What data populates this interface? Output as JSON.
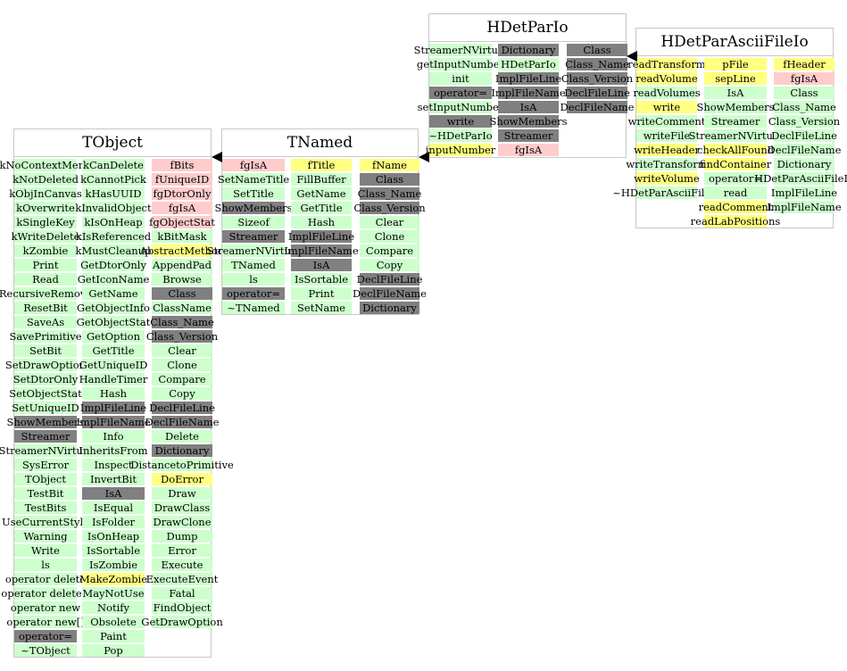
{
  "colors": {
    "green": "#ccffcc",
    "gray": "#808080",
    "pink": "#ffcccc",
    "yellow": "#ffff80",
    "border": "#c8c8c8",
    "arrow": "#000000"
  },
  "classes": [
    {
      "id": "tobject",
      "title": "TObject",
      "columns": [
        {
          "items": [
            [
              "kNoContextMenu",
              "green"
            ],
            [
              "kNotDeleted",
              "green"
            ],
            [
              "kObjInCanvas",
              "green"
            ],
            [
              "kOverwrite",
              "green"
            ],
            [
              "kSingleKey",
              "green"
            ],
            [
              "kWriteDelete",
              "green"
            ],
            [
              "kZombie",
              "green"
            ],
            [
              "Print",
              "green"
            ],
            [
              "Read",
              "green"
            ],
            [
              "RecursiveRemove",
              "green"
            ],
            [
              "ResetBit",
              "green"
            ],
            [
              "SaveAs",
              "green"
            ],
            [
              "SavePrimitive",
              "green"
            ],
            [
              "SetBit",
              "green"
            ],
            [
              "SetDrawOption",
              "green"
            ],
            [
              "SetDtorOnly",
              "green"
            ],
            [
              "SetObjectStat",
              "green"
            ],
            [
              "SetUniqueID",
              "green"
            ],
            [
              "ShowMembers",
              "gray"
            ],
            [
              "Streamer",
              "gray"
            ],
            [
              "StreamerNVirtual",
              "green"
            ],
            [
              "SysError",
              "green"
            ],
            [
              "TObject",
              "green"
            ],
            [
              "TestBit",
              "green"
            ],
            [
              "TestBits",
              "green"
            ],
            [
              "UseCurrentStyle",
              "green"
            ],
            [
              "Warning",
              "green"
            ],
            [
              "Write",
              "green"
            ],
            [
              "ls",
              "green"
            ],
            [
              "operator delete",
              "green"
            ],
            [
              "operator delete[]",
              "green"
            ],
            [
              "operator new",
              "green"
            ],
            [
              "operator new[]",
              "green"
            ],
            [
              "operator=",
              "gray"
            ],
            [
              "~TObject",
              "green"
            ]
          ]
        },
        {
          "items": [
            [
              "kCanDelete",
              "green"
            ],
            [
              "kCannotPick",
              "green"
            ],
            [
              "kHasUUID",
              "green"
            ],
            [
              "kInvalidObject",
              "green"
            ],
            [
              "kIsOnHeap",
              "green"
            ],
            [
              "kIsReferenced",
              "green"
            ],
            [
              "kMustCleanup",
              "green"
            ],
            [
              "GetDtorOnly",
              "green"
            ],
            [
              "GetIconName",
              "green"
            ],
            [
              "GetName",
              "green"
            ],
            [
              "GetObjectInfo",
              "green"
            ],
            [
              "GetObjectStat",
              "green"
            ],
            [
              "GetOption",
              "green"
            ],
            [
              "GetTitle",
              "green"
            ],
            [
              "GetUniqueID",
              "green"
            ],
            [
              "HandleTimer",
              "green"
            ],
            [
              "Hash",
              "green"
            ],
            [
              "ImplFileLine",
              "gray"
            ],
            [
              "ImplFileName",
              "gray"
            ],
            [
              "Info",
              "green"
            ],
            [
              "InheritsFrom",
              "green"
            ],
            [
              "Inspect",
              "green"
            ],
            [
              "InvertBit",
              "green"
            ],
            [
              "IsA",
              "gray"
            ],
            [
              "IsEqual",
              "green"
            ],
            [
              "IsFolder",
              "green"
            ],
            [
              "IsOnHeap",
              "green"
            ],
            [
              "IsSortable",
              "green"
            ],
            [
              "IsZombie",
              "green"
            ],
            [
              "MakeZombie",
              "yellow"
            ],
            [
              "MayNotUse",
              "green"
            ],
            [
              "Notify",
              "green"
            ],
            [
              "Obsolete",
              "green"
            ],
            [
              "Paint",
              "green"
            ],
            [
              "Pop",
              "green"
            ]
          ]
        },
        {
          "items": [
            [
              "fBits",
              "pink"
            ],
            [
              "fUniqueID",
              "pink"
            ],
            [
              "fgDtorOnly",
              "pink"
            ],
            [
              "fgIsA",
              "pink"
            ],
            [
              "fgObjectStat",
              "pink"
            ],
            [
              "kBitMask",
              "green"
            ],
            [
              "AbstractMethod",
              "yellow"
            ],
            [
              "AppendPad",
              "green"
            ],
            [
              "Browse",
              "green"
            ],
            [
              "Class",
              "gray"
            ],
            [
              "ClassName",
              "green"
            ],
            [
              "Class_Name",
              "gray"
            ],
            [
              "Class_Version",
              "gray"
            ],
            [
              "Clear",
              "green"
            ],
            [
              "Clone",
              "green"
            ],
            [
              "Compare",
              "green"
            ],
            [
              "Copy",
              "green"
            ],
            [
              "DeclFileLine",
              "gray"
            ],
            [
              "DeclFileName",
              "gray"
            ],
            [
              "Delete",
              "green"
            ],
            [
              "Dictionary",
              "gray"
            ],
            [
              "DistancetoPrimitive",
              "green"
            ],
            [
              "DoError",
              "yellow"
            ],
            [
              "Draw",
              "green"
            ],
            [
              "DrawClass",
              "green"
            ],
            [
              "DrawClone",
              "green"
            ],
            [
              "Dump",
              "green"
            ],
            [
              "Error",
              "green"
            ],
            [
              "Execute",
              "green"
            ],
            [
              "ExecuteEvent",
              "green"
            ],
            [
              "Fatal",
              "green"
            ],
            [
              "FindObject",
              "green"
            ],
            [
              "GetDrawOption",
              "green"
            ]
          ]
        }
      ]
    },
    {
      "id": "tnamed",
      "title": "TNamed",
      "columns": [
        {
          "items": [
            [
              "fgIsA",
              "pink"
            ],
            [
              "SetNameTitle",
              "green"
            ],
            [
              "SetTitle",
              "green"
            ],
            [
              "ShowMembers",
              "gray"
            ],
            [
              "Sizeof",
              "green"
            ],
            [
              "Streamer",
              "gray"
            ],
            [
              "StreamerNVirtual",
              "green"
            ],
            [
              "TNamed",
              "green"
            ],
            [
              "ls",
              "green"
            ],
            [
              "operator=",
              "gray"
            ],
            [
              "~TNamed",
              "green"
            ]
          ]
        },
        {
          "items": [
            [
              "fTitle",
              "yellow"
            ],
            [
              "FillBuffer",
              "green"
            ],
            [
              "GetName",
              "green"
            ],
            [
              "GetTitle",
              "green"
            ],
            [
              "Hash",
              "green"
            ],
            [
              "ImplFileLine",
              "gray"
            ],
            [
              "ImplFileName",
              "gray"
            ],
            [
              "IsA",
              "gray"
            ],
            [
              "IsSortable",
              "green"
            ],
            [
              "Print",
              "green"
            ],
            [
              "SetName",
              "green"
            ]
          ]
        },
        {
          "items": [
            [
              "fName",
              "yellow"
            ],
            [
              "Class",
              "gray"
            ],
            [
              "Class_Name",
              "gray"
            ],
            [
              "Class_Version",
              "gray"
            ],
            [
              "Clear",
              "green"
            ],
            [
              "Clone",
              "green"
            ],
            [
              "Compare",
              "green"
            ],
            [
              "Copy",
              "green"
            ],
            [
              "DeclFileLine",
              "gray"
            ],
            [
              "DeclFileName",
              "gray"
            ],
            [
              "Dictionary",
              "gray"
            ]
          ]
        }
      ]
    },
    {
      "id": "hdetpario",
      "title": "HDetParIo",
      "columns": [
        {
          "items": [
            [
              "StreamerNVirtual",
              "green"
            ],
            [
              "getInputNumber",
              "green"
            ],
            [
              "init",
              "green"
            ],
            [
              "operator=",
              "gray"
            ],
            [
              "setInputNumber",
              "green"
            ],
            [
              "write",
              "gray"
            ],
            [
              "~HDetParIo",
              "green"
            ],
            [
              "inputNumber",
              "yellow"
            ]
          ]
        },
        {
          "items": [
            [
              "Dictionary",
              "gray"
            ],
            [
              "HDetParIo",
              "green"
            ],
            [
              "ImplFileLine",
              "gray"
            ],
            [
              "ImplFileName",
              "gray"
            ],
            [
              "IsA",
              "gray"
            ],
            [
              "ShowMembers",
              "gray"
            ],
            [
              "Streamer",
              "gray"
            ],
            [
              "fgIsA",
              "pink"
            ]
          ]
        },
        {
          "items": [
            [
              "Class",
              "gray"
            ],
            [
              "Class_Name",
              "gray"
            ],
            [
              "Class_Version",
              "gray"
            ],
            [
              "DeclFileLine",
              "gray"
            ],
            [
              "DeclFileName",
              "gray"
            ]
          ]
        }
      ]
    },
    {
      "id": "hdetparasciifileio",
      "title": "HDetParAsciiFileIo",
      "columns": [
        {
          "items": [
            [
              "readTransform",
              "yellow"
            ],
            [
              "readVolume",
              "yellow"
            ],
            [
              "readVolumes",
              "green"
            ],
            [
              "write",
              "yellow"
            ],
            [
              "writeComment",
              "green"
            ],
            [
              "writeFile",
              "green"
            ],
            [
              "writeHeader",
              "yellow"
            ],
            [
              "writeTransform",
              "green"
            ],
            [
              "writeVolume",
              "yellow"
            ],
            [
              "~HDetParAsciiFileIo",
              "green"
            ]
          ]
        },
        {
          "items": [
            [
              "pFile",
              "yellow"
            ],
            [
              "sepLine",
              "yellow"
            ],
            [
              "IsA",
              "green"
            ],
            [
              "ShowMembers",
              "green"
            ],
            [
              "Streamer",
              "green"
            ],
            [
              "StreamerNVirtual",
              "green"
            ],
            [
              "checkAllFound",
              "yellow"
            ],
            [
              "findContainer",
              "yellow"
            ],
            [
              "operator=",
              "green"
            ],
            [
              "read",
              "green"
            ],
            [
              "readComment",
              "yellow"
            ],
            [
              "readLabPositions",
              "yellow"
            ]
          ]
        },
        {
          "items": [
            [
              "fHeader",
              "yellow"
            ],
            [
              "fgIsA",
              "pink"
            ],
            [
              "Class",
              "green"
            ],
            [
              "Class_Name",
              "green"
            ],
            [
              "Class_Version",
              "green"
            ],
            [
              "DeclFileLine",
              "green"
            ],
            [
              "DeclFileName",
              "green"
            ],
            [
              "Dictionary",
              "green"
            ],
            [
              "HDetParAsciiFileIo",
              "green"
            ],
            [
              "ImplFileLine",
              "green"
            ],
            [
              "ImplFileName",
              "green"
            ]
          ]
        }
      ]
    }
  ]
}
